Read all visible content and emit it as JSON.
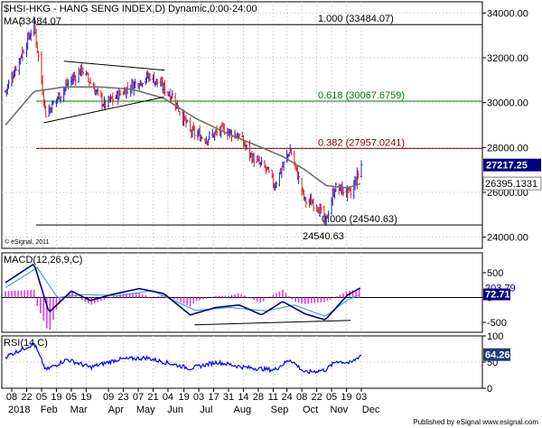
{
  "header": {
    "title": "$HSI-HKG - HANG SENG INDEX,D) Dynamic,0:00-24:00",
    "ma_label": "MA(",
    "ma_value": "33484.07"
  },
  "copyright": "© eSignal, 2011",
  "footer": "Published by eSignal   www.esignal.com",
  "x_axis": {
    "day_ticks": [
      "08",
      "22",
      "05",
      "19",
      "05",
      "19",
      "09",
      "23",
      "07",
      "21",
      "04",
      "19",
      "03",
      "17",
      "31",
      "14",
      "28",
      "11",
      "24",
      "08",
      "22",
      "05",
      "19",
      "03"
    ],
    "month_labels": [
      "2018",
      "Feb",
      "Mar",
      "Apr",
      "May",
      "Jun",
      "Jul",
      "Aug",
      "Sep",
      "Oct",
      "Nov",
      "Dec"
    ]
  },
  "chart_data": [
    {
      "type": "candlestick",
      "panel": "price",
      "ylim": [
        23500,
        34500
      ],
      "y_ticks": [
        "34000.00",
        "32000.00",
        "30000.00",
        "28000.00",
        "26000.00",
        "24000.00"
      ],
      "last_price": "27217.25",
      "ma_last": "26395.1331",
      "fib_levels": [
        {
          "label": "1.000 (33484.07)",
          "value": 33484.07,
          "color": "#000000"
        },
        {
          "label": "0.618 (30067.6759)",
          "value": 30067.6759,
          "color": "#008000"
        },
        {
          "label": "0.382 (27957.0241)",
          "value": 27957.0241,
          "color": "#8b0000"
        },
        {
          "label": "0.000 (24540.63)",
          "value": 24540.63,
          "color": "#000000"
        }
      ],
      "low_label": "24540.63",
      "key_points": [
        {
          "date": "2018-01-02",
          "close": 30500
        },
        {
          "date": "2018-01-29",
          "close": 33484
        },
        {
          "date": "2018-02-09",
          "close": 29500
        },
        {
          "date": "2018-03-01",
          "close": 30800
        },
        {
          "date": "2018-03-15",
          "close": 31500
        },
        {
          "date": "2018-04-05",
          "close": 29900
        },
        {
          "date": "2018-05-02",
          "close": 30800
        },
        {
          "date": "2018-05-18",
          "close": 31200
        },
        {
          "date": "2018-06-08",
          "close": 30300
        },
        {
          "date": "2018-06-25",
          "close": 28700
        },
        {
          "date": "2018-07-10",
          "close": 28400
        },
        {
          "date": "2018-07-26",
          "close": 28800
        },
        {
          "date": "2018-08-10",
          "close": 28500
        },
        {
          "date": "2018-08-23",
          "close": 27500
        },
        {
          "date": "2018-09-05",
          "close": 27000
        },
        {
          "date": "2018-09-12",
          "close": 26300
        },
        {
          "date": "2018-09-27",
          "close": 27900
        },
        {
          "date": "2018-10-11",
          "close": 25600
        },
        {
          "date": "2018-10-22",
          "close": 25500
        },
        {
          "date": "2018-10-30",
          "close": 24600
        },
        {
          "date": "2018-11-08",
          "close": 26200
        },
        {
          "date": "2018-11-15",
          "close": 26100
        },
        {
          "date": "2018-11-23",
          "close": 25900
        },
        {
          "date": "2018-12-03",
          "close": 27217
        }
      ],
      "ma_points": [
        {
          "date": "2018-01-02",
          "value": 29000
        },
        {
          "date": "2018-01-29",
          "value": 30500
        },
        {
          "date": "2018-02-26",
          "value": 30700
        },
        {
          "date": "2018-04-01",
          "value": 30700
        },
        {
          "date": "2018-05-01",
          "value": 30600
        },
        {
          "date": "2018-05-31",
          "value": 30200
        },
        {
          "date": "2018-06-30",
          "value": 29300
        },
        {
          "date": "2018-07-31",
          "value": 28600
        },
        {
          "date": "2018-08-31",
          "value": 28000
        },
        {
          "date": "2018-09-20",
          "value": 27600
        },
        {
          "date": "2018-10-11",
          "value": 27000
        },
        {
          "date": "2018-10-31",
          "value": 26300
        },
        {
          "date": "2018-11-20",
          "value": 26200
        },
        {
          "date": "2018-12-03",
          "value": 26395
        }
      ],
      "trendlines": [
        {
          "name": "triangle-upper",
          "points": [
            {
              "date": "2018-02-26",
              "value": 31850
            },
            {
              "date": "2018-06-01",
              "value": 31450
            }
          ]
        },
        {
          "name": "triangle-lower",
          "points": [
            {
              "date": "2018-02-07",
              "value": 29100
            },
            {
              "date": "2018-05-31",
              "value": 30250
            }
          ]
        }
      ]
    },
    {
      "type": "macd",
      "panel": "macd",
      "label": "MACD(12,26,9,C)",
      "ylim": [
        -700,
        900
      ],
      "y_ticks": [
        "500",
        "0",
        "-500"
      ],
      "macd_value": "203.79",
      "signal_value": "72.71",
      "series": [
        {
          "name": "MACD",
          "points": [
            {
              "date": "2018-01-02",
              "value": 300
            },
            {
              "date": "2018-01-29",
              "value": 680
            },
            {
              "date": "2018-02-12",
              "value": -300
            },
            {
              "date": "2018-03-05",
              "value": 130
            },
            {
              "date": "2018-03-23",
              "value": -60
            },
            {
              "date": "2018-04-12",
              "value": 60
            },
            {
              "date": "2018-05-08",
              "value": 180
            },
            {
              "date": "2018-05-31",
              "value": 80
            },
            {
              "date": "2018-06-25",
              "value": -350
            },
            {
              "date": "2018-07-19",
              "value": -200
            },
            {
              "date": "2018-08-10",
              "value": -150
            },
            {
              "date": "2018-08-31",
              "value": -350
            },
            {
              "date": "2018-09-20",
              "value": -80
            },
            {
              "date": "2018-10-11",
              "value": -330
            },
            {
              "date": "2018-10-30",
              "value": -450
            },
            {
              "date": "2018-11-20",
              "value": 50
            },
            {
              "date": "2018-12-03",
              "value": 204
            }
          ]
        },
        {
          "name": "Signal",
          "points": [
            {
              "date": "2018-01-02",
              "value": 200
            },
            {
              "date": "2018-02-01",
              "value": 600
            },
            {
              "date": "2018-02-20",
              "value": 0
            },
            {
              "date": "2018-03-15",
              "value": 60
            },
            {
              "date": "2018-04-20",
              "value": 40
            },
            {
              "date": "2018-05-20",
              "value": 140
            },
            {
              "date": "2018-06-30",
              "value": -260
            },
            {
              "date": "2018-08-01",
              "value": -200
            },
            {
              "date": "2018-09-05",
              "value": -270
            },
            {
              "date": "2018-10-01",
              "value": -150
            },
            {
              "date": "2018-10-30",
              "value": -380
            },
            {
              "date": "2018-11-20",
              "value": -50
            },
            {
              "date": "2018-12-03",
              "value": 73
            }
          ]
        }
      ],
      "divergence_line": [
        {
          "date": "2018-06-29",
          "value": -550
        },
        {
          "date": "2018-11-23",
          "value": -460
        }
      ]
    },
    {
      "type": "line",
      "panel": "rsi",
      "label": "RSI(14,C)",
      "ylim": [
        0,
        100
      ],
      "y_ticks": [
        "100",
        "50",
        "0"
      ],
      "rsi_value": "64.26",
      "series": [
        {
          "name": "RSI",
          "points": [
            {
              "date": "2018-01-02",
              "value": 60
            },
            {
              "date": "2018-01-29",
              "value": 85
            },
            {
              "date": "2018-02-09",
              "value": 35
            },
            {
              "date": "2018-03-01",
              "value": 55
            },
            {
              "date": "2018-03-23",
              "value": 40
            },
            {
              "date": "2018-04-18",
              "value": 55
            },
            {
              "date": "2018-05-15",
              "value": 58
            },
            {
              "date": "2018-06-25",
              "value": 38
            },
            {
              "date": "2018-07-20",
              "value": 50
            },
            {
              "date": "2018-08-15",
              "value": 40
            },
            {
              "date": "2018-09-12",
              "value": 35
            },
            {
              "date": "2018-09-27",
              "value": 55
            },
            {
              "date": "2018-10-11",
              "value": 30
            },
            {
              "date": "2018-10-30",
              "value": 35
            },
            {
              "date": "2018-11-10",
              "value": 52
            },
            {
              "date": "2018-11-23",
              "value": 48
            },
            {
              "date": "2018-12-03",
              "value": 64
            }
          ]
        }
      ]
    }
  ],
  "colors": {
    "panel_bg": "#ffffff",
    "grid": "#c0c0c0",
    "axis": "#000000",
    "candle_up": "#2222cc",
    "candle_down": "#dd2222",
    "ma": "#707070",
    "macd_line": "#000080",
    "signal_line": "#4aa0d8",
    "histogram": "#e040e0",
    "rsi_line": "#0000ff",
    "last_box": "#000080",
    "rsi_box": "#1e3c78"
  }
}
